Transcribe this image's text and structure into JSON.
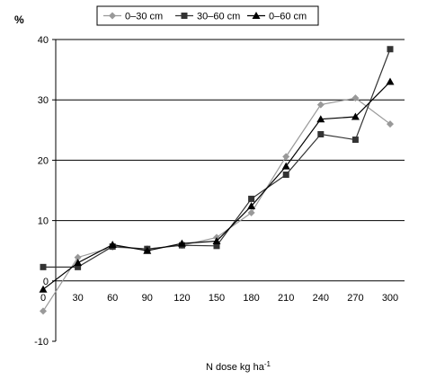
{
  "chart_data": {
    "type": "line",
    "ylabel": "%",
    "xlabel": "N dose kg ha",
    "xlabel_superscript": "-1",
    "x": [
      0,
      30,
      60,
      90,
      120,
      150,
      180,
      210,
      240,
      270,
      300
    ],
    "xticks": [
      "0",
      "30",
      "60",
      "90",
      "120",
      "150",
      "180",
      "210",
      "240",
      "270",
      "300"
    ],
    "ylim": [
      -10,
      40
    ],
    "yticks": [
      -10,
      0,
      10,
      20,
      30,
      40
    ],
    "grid": true,
    "legend_position": "top-center",
    "series": [
      {
        "name": "0–30 cm",
        "marker": "diamond",
        "color": "#999999",
        "values": [
          -5,
          3.9,
          5.6,
          5.3,
          5.9,
          7.2,
          11.3,
          20.6,
          29.2,
          30.3,
          26
        ]
      },
      {
        "name": "30–60 cm",
        "marker": "square",
        "color": "#333333",
        "values": [
          2.3,
          2.3,
          5.7,
          5.3,
          5.9,
          5.8,
          13.6,
          17.6,
          24.3,
          23.4,
          38.4
        ]
      },
      {
        "name": "0–60 cm",
        "marker": "triangle",
        "color": "#000000",
        "values": [
          -1.4,
          3,
          6,
          5,
          6.2,
          6.6,
          12.4,
          19,
          26.8,
          27.2,
          33
        ]
      }
    ]
  }
}
